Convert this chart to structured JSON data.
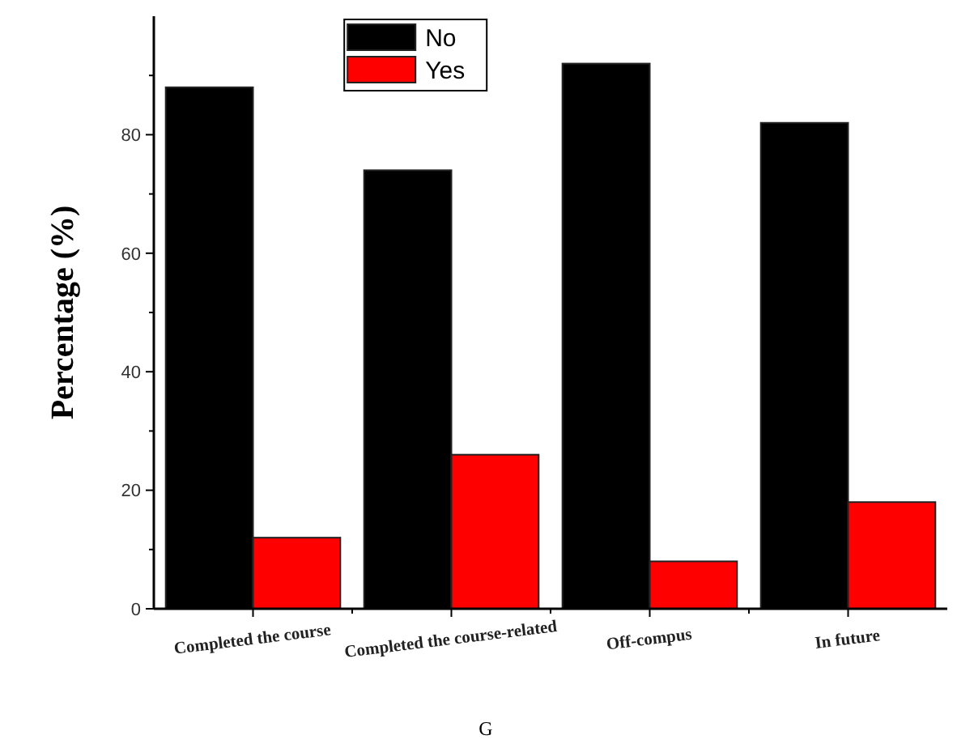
{
  "chart_data": {
    "type": "bar",
    "xlabel": "G",
    "ylabel": "Percentage (%)",
    "categories": [
      "Completed the course",
      "Completed the course-related",
      "Off-compus",
      "In future"
    ],
    "series": [
      {
        "name": "No",
        "color": "#000000",
        "values": [
          88,
          74,
          92,
          82
        ]
      },
      {
        "name": "Yes",
        "color": "#ff0000",
        "values": [
          12,
          26,
          8,
          18
        ]
      }
    ],
    "ylim": [
      0,
      100
    ],
    "yticks": [
      0,
      {
        "value": 10,
        "label": null
      },
      20,
      {
        "value": 30,
        "label": null
      },
      40,
      {
        "value": 50,
        "label": null
      },
      60,
      {
        "value": 70,
        "label": null
      },
      80,
      {
        "value": 90,
        "label": null
      }
    ],
    "legend": "top"
  }
}
